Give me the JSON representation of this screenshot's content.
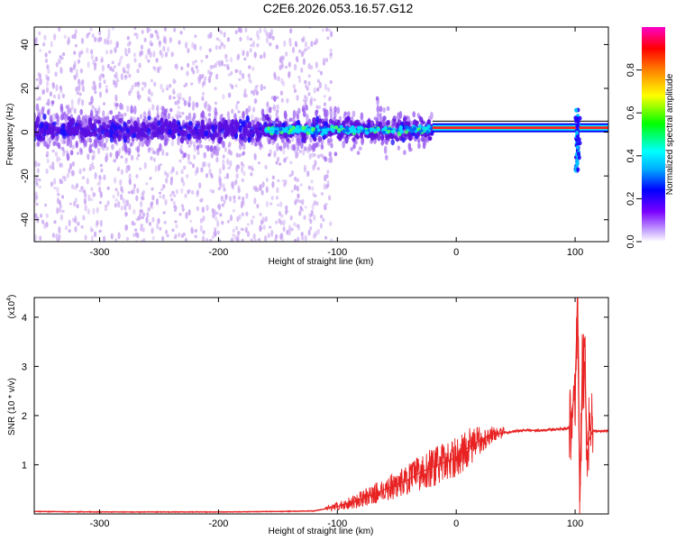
{
  "title": "C2E6.2026.053.16.57.G12",
  "colors": {
    "line": "#e82222",
    "scatter_light": "#c9a6f2",
    "scatter_dark": "#5b0fe0",
    "frame": "#000000"
  },
  "chart_data": [
    {
      "type": "heatmap",
      "xlabel": "Height of straight line (km)",
      "ylabel": "Frequency (Hz)",
      "xlim": [
        -355,
        128
      ],
      "ylim": [
        -50,
        48
      ],
      "x_ticks": [
        -300,
        -200,
        -100,
        0,
        100
      ],
      "x_tick_labels": [
        "-300",
        "-200",
        "-100",
        "0",
        "100"
      ],
      "y_ticks": [
        -40,
        -20,
        0,
        20,
        40
      ],
      "y_tick_labels": [
        "-40",
        "-20",
        "0",
        "20",
        "40"
      ],
      "colorbar": {
        "label": "Normalized spectral amplitude",
        "range": [
          0,
          1
        ],
        "ticks": [
          0.0,
          0.2,
          0.4,
          0.6,
          0.8
        ],
        "tick_labels": [
          "0.0",
          "0.2",
          "0.4",
          "0.6",
          "0.8"
        ],
        "colormap": [
          "#ffffff",
          "#c8a8ff",
          "#7a00ff",
          "#0000ff",
          "#00b0ff",
          "#00ffff",
          "#00ff00",
          "#ffff00",
          "#ff8000",
          "#ff0000",
          "#ff00c8"
        ]
      },
      "features": {
        "scatter_extent_x": [
          -355,
          -105
        ],
        "dense_band_x": [
          -355,
          -20
        ],
        "carrier_x": [
          -20,
          128
        ],
        "carrier_freq": 2,
        "spike_x": 102,
        "spike_freq_range": [
          -18,
          12
        ]
      }
    },
    {
      "type": "line",
      "xlabel": "Height of straight line (km)",
      "ylabel": "SNR (10 * v/v)",
      "y_multiplier": "(x10",
      "y_multiplier_exp": "4",
      "y_multiplier_close": ")",
      "xlim": [
        -355,
        128
      ],
      "ylim": [
        0,
        4.4
      ],
      "x_ticks": [
        -300,
        -200,
        -100,
        0,
        100
      ],
      "x_tick_labels": [
        "-300",
        "-200",
        "-100",
        "0",
        "100"
      ],
      "y_ticks": [
        1,
        2,
        3,
        4
      ],
      "y_tick_labels": [
        "1",
        "2",
        "3",
        "4"
      ],
      "series": [
        {
          "x": [
            -355,
            -300,
            -200,
            -150,
            -120,
            -100,
            -80,
            -60,
            -40,
            -30,
            -20,
            -10,
            0,
            10,
            20,
            30,
            40,
            55,
            70,
            85,
            95,
            100,
            102,
            104,
            106,
            108,
            110,
            115,
            120,
            128
          ],
          "y": [
            0.05,
            0.04,
            0.04,
            0.05,
            0.06,
            0.15,
            0.3,
            0.5,
            0.7,
            0.85,
            0.95,
            1.05,
            1.15,
            1.35,
            1.5,
            1.62,
            1.65,
            1.7,
            1.7,
            1.72,
            1.75,
            2.5,
            4.3,
            0.25,
            2.8,
            3.1,
            1.4,
            1.7,
            1.68,
            1.7
          ]
        }
      ]
    }
  ]
}
